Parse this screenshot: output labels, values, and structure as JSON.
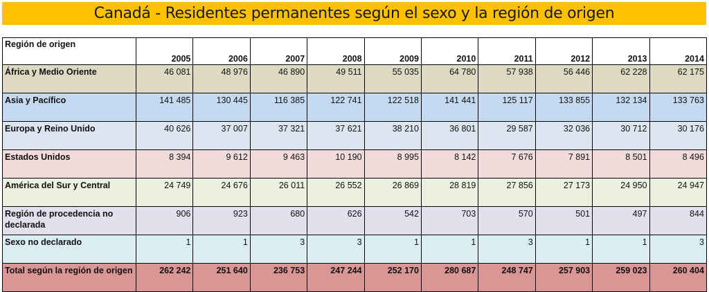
{
  "title": "Canadá - Residentes permanentes según el sexo y la región de origen",
  "table": {
    "region_header": "Región de origen",
    "years": [
      "2005",
      "2006",
      "2007",
      "2008",
      "2009",
      "2010",
      "2011",
      "2012",
      "2013",
      "2014"
    ],
    "rows": [
      {
        "region": "África y Medio Oriente",
        "color": "#ddd9c3",
        "values": [
          "46 081",
          "48 976",
          "46 890",
          "49 511",
          "55 035",
          "64 780",
          "57 938",
          "56 446",
          "62 228",
          "62 175"
        ]
      },
      {
        "region": "Asia y Pacífico",
        "color": "#c5d9f1",
        "values": [
          "141 485",
          "130 445",
          "116 385",
          "122 741",
          "122 518",
          "141 441",
          "125 117",
          "133 855",
          "132 134",
          "133 763"
        ]
      },
      {
        "region": "Europa y Reino Unido",
        "color": "#dce6f1",
        "values": [
          "40 626",
          "37 007",
          "37 321",
          "37 621",
          "38 210",
          "36 801",
          "29 587",
          "32 036",
          "30 712",
          "30 176"
        ]
      },
      {
        "region": "Estados Unidos",
        "color": "#f2dcdb",
        "values": [
          "8 394",
          "9 612",
          "9 463",
          "10 190",
          "8 995",
          "8 142",
          "7 676",
          "7 891",
          "8 501",
          "8 496"
        ]
      },
      {
        "region": "América del Sur y Central",
        "color": "#ebf1de",
        "values": [
          "24 749",
          "24 676",
          "26 011",
          "26 552",
          "26 869",
          "28 819",
          "27 856",
          "27 173",
          "24 950",
          "24 947"
        ]
      },
      {
        "region": "Región de procedencia no declarada",
        "color": "#e4dfec",
        "values": [
          "906",
          "923",
          "680",
          "626",
          "542",
          "703",
          "570",
          "501",
          "497",
          "844"
        ]
      },
      {
        "region": "Sexo no declarado",
        "color": "#daeef3",
        "values": [
          "1",
          "1",
          "3",
          "3",
          "1",
          "1",
          "3",
          "1",
          "1",
          "3"
        ]
      },
      {
        "region": "Total según la región de origen",
        "color": "#da9694",
        "total": true,
        "values": [
          "262 242",
          "251 640",
          "236 753",
          "247 244",
          "252 170",
          "280 687",
          "248 747",
          "257 903",
          "259 023",
          "260 404"
        ]
      }
    ]
  }
}
